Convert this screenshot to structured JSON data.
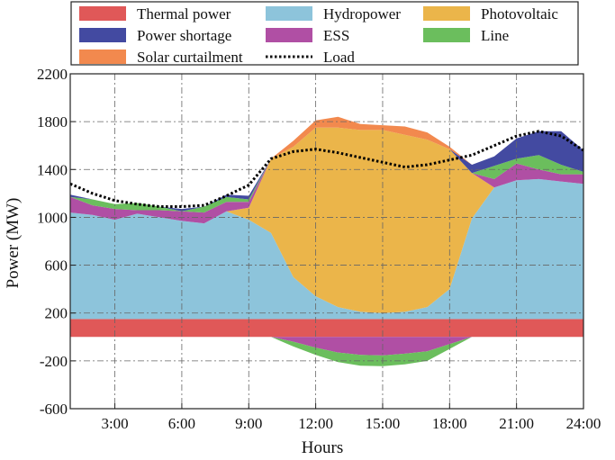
{
  "chart_data": {
    "type": "area",
    "xlabel": "Hours",
    "ylabel": "Power (MW)",
    "ylim": [
      -600,
      2200
    ],
    "xlim": [
      1,
      24
    ],
    "x_ticks": [
      3,
      6,
      9,
      12,
      15,
      18,
      21,
      24
    ],
    "x_tick_labels": [
      "3:00",
      "6:00",
      "9:00",
      "12:00",
      "15:00",
      "18:00",
      "21:00",
      "24:00"
    ],
    "y_ticks": [
      -600,
      -200,
      200,
      600,
      1000,
      1400,
      1800,
      2200
    ],
    "y_tick_labels": [
      "-600",
      "-200",
      "200",
      "600",
      "1000",
      "1400",
      "1800",
      "2200"
    ],
    "grid": true,
    "legend_position": "top",
    "x": [
      1,
      2,
      3,
      4,
      5,
      6,
      7,
      8,
      9,
      10,
      11,
      12,
      13,
      14,
      15,
      16,
      17,
      18,
      19,
      20,
      21,
      22,
      23,
      24
    ],
    "positive_stack": [
      {
        "name": "Thermal power",
        "color": "#E05858",
        "values": [
          150,
          150,
          150,
          150,
          150,
          150,
          150,
          150,
          150,
          150,
          150,
          150,
          150,
          150,
          150,
          150,
          150,
          150,
          150,
          150,
          150,
          150,
          150,
          150
        ]
      },
      {
        "name": "Hydropower",
        "color": "#8DC4DB",
        "values": [
          890,
          870,
          830,
          880,
          850,
          820,
          800,
          900,
          830,
          720,
          350,
          190,
          100,
          60,
          50,
          60,
          100,
          250,
          840,
          1100,
          1160,
          1170,
          1150,
          1130
        ]
      },
      {
        "name": "Photovoltaic",
        "color": "#EBB54A",
        "values": [
          0,
          0,
          0,
          0,
          0,
          0,
          0,
          0,
          100,
          620,
          1090,
          1410,
          1500,
          1520,
          1530,
          1480,
          1400,
          1170,
          380,
          0,
          0,
          0,
          0,
          0
        ]
      },
      {
        "name": "ESS",
        "color": "#B04FA4",
        "values": [
          130,
          80,
          90,
          30,
          60,
          80,
          90,
          80,
          50,
          0,
          0,
          0,
          0,
          0,
          0,
          0,
          0,
          0,
          0,
          70,
          140,
          80,
          60,
          80
        ]
      },
      {
        "name": "Line",
        "color": "#6BBE5D",
        "values": [
          0,
          50,
          40,
          60,
          30,
          0,
          50,
          40,
          20,
          0,
          0,
          0,
          0,
          0,
          0,
          0,
          0,
          0,
          0,
          110,
          40,
          120,
          80,
          20
        ]
      },
      {
        "name": "Power shortage",
        "color": "#434AA1",
        "values": [
          20,
          0,
          0,
          0,
          0,
          20,
          0,
          20,
          30,
          0,
          0,
          0,
          0,
          0,
          0,
          0,
          0,
          0,
          70,
          80,
          170,
          200,
          280,
          180
        ]
      },
      {
        "name": "Solar curtailment",
        "color": "#F2894E",
        "values": [
          0,
          0,
          0,
          0,
          0,
          0,
          0,
          0,
          0,
          0,
          50,
          60,
          90,
          50,
          40,
          70,
          60,
          20,
          0,
          0,
          0,
          0,
          0,
          0
        ]
      }
    ],
    "negative_stack": [
      {
        "name": "ESS",
        "color": "#B04FA4",
        "values": [
          0,
          0,
          0,
          0,
          0,
          0,
          0,
          0,
          0,
          0,
          -40,
          -90,
          -130,
          -150,
          -155,
          -140,
          -120,
          -60,
          0,
          0,
          0,
          0,
          0,
          0
        ]
      },
      {
        "name": "Line",
        "color": "#6BBE5D",
        "values": [
          0,
          0,
          0,
          0,
          0,
          0,
          0,
          0,
          0,
          0,
          -40,
          -60,
          -80,
          -90,
          -90,
          -90,
          -80,
          -40,
          0,
          0,
          0,
          0,
          0,
          0
        ]
      }
    ],
    "load": {
      "name": "Load",
      "values": [
        1280,
        1200,
        1140,
        1110,
        1090,
        1090,
        1100,
        1180,
        1270,
        1490,
        1550,
        1570,
        1540,
        1500,
        1460,
        1420,
        1440,
        1480,
        1520,
        1600,
        1680,
        1720,
        1680,
        1560
      ]
    },
    "legend": [
      {
        "name": "Thermal power",
        "color": "#E05858",
        "kind": "patch"
      },
      {
        "name": "Hydropower",
        "color": "#8DC4DB",
        "kind": "patch"
      },
      {
        "name": "Photovoltaic",
        "color": "#EBB54A",
        "kind": "patch"
      },
      {
        "name": "Power shortage",
        "color": "#434AA1",
        "kind": "patch"
      },
      {
        "name": "ESS",
        "color": "#B04FA4",
        "kind": "patch"
      },
      {
        "name": "Line",
        "color": "#6BBE5D",
        "kind": "patch"
      },
      {
        "name": "Solar curtailment",
        "color": "#F2894E",
        "kind": "patch"
      },
      {
        "name": "Load",
        "color": "#111111",
        "kind": "dotted-line"
      }
    ]
  }
}
